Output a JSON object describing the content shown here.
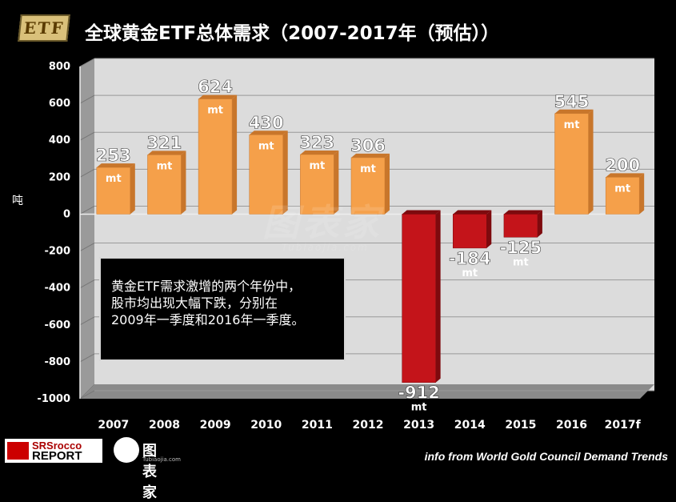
{
  "header": {
    "badge": "ETF",
    "title": "全球黄金ETF总体需求（2007-2017年（预估））"
  },
  "y_axis_unit": "吨",
  "annotation": {
    "lines": [
      "黄金ETF需求激增的两个年份中，",
      "股市均出现大幅下跌，分别在",
      "2009年一季度和2016年一季度。"
    ]
  },
  "watermark": {
    "main": "图表家",
    "sub": "Tubiaojia.com"
  },
  "footer": {
    "logo_line1": "SRSrocco",
    "logo_line2": "REPORT",
    "logo2_text": "图表家",
    "logo2_sub": "Tubiaojia.com",
    "source": "info from World Gold Council Demand Trends"
  },
  "colors": {
    "positive_bar": "#f5a04a",
    "negative_bar": "#c4141a",
    "plot_bg": "#dcdcdc"
  },
  "chart_data": {
    "type": "bar",
    "title": "全球黄金ETF总体需求（2007-2017年（预估））",
    "xlabel": "",
    "ylabel": "吨",
    "categories": [
      "2007",
      "2008",
      "2009",
      "2010",
      "2011",
      "2012",
      "2013",
      "2014",
      "2015",
      "2016",
      "2017f"
    ],
    "values": [
      253,
      321,
      624,
      430,
      323,
      306,
      -912,
      -184,
      -125,
      545,
      200
    ],
    "unit_label": "mt",
    "ylim": [
      -1000,
      800
    ],
    "yticks": [
      800,
      600,
      400,
      200,
      0,
      -200,
      -400,
      -600,
      -800,
      -1000
    ],
    "grid": true
  }
}
